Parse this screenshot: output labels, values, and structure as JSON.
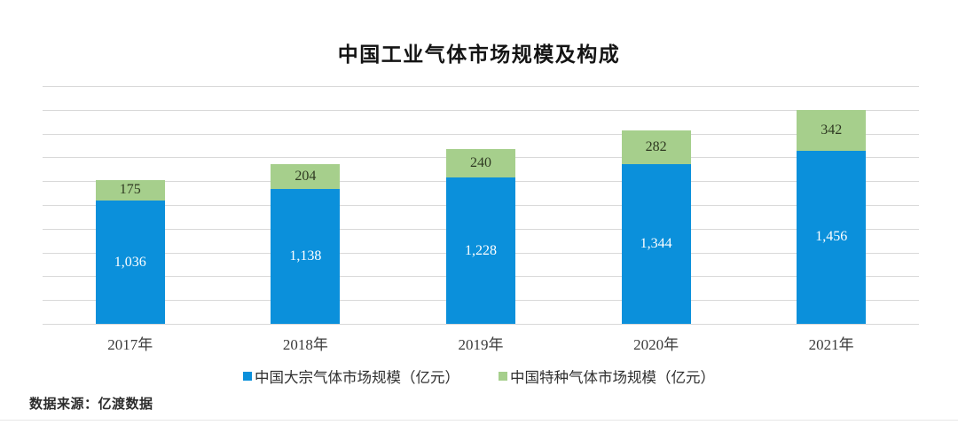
{
  "chart_data": {
    "type": "bar",
    "stacked": true,
    "title": "中国工业气体市场规模及构成",
    "categories": [
      "2017年",
      "2018年",
      "2019年",
      "2020年",
      "2021年"
    ],
    "series": [
      {
        "name": "中国大宗气体市场规模（亿元）",
        "color": "#0b90db",
        "label_color": "#ffffff",
        "values": [
          1036,
          1138,
          1228,
          1344,
          1456
        ],
        "labels": [
          "1,036",
          "1,138",
          "1,228",
          "1,344",
          "1,456"
        ]
      },
      {
        "name": "中国特种气体市场规模（亿元）",
        "color": "#a6cf8c",
        "label_color": "#2f3a22",
        "values": [
          175,
          204,
          240,
          282,
          342
        ],
        "labels": [
          "175",
          "204",
          "240",
          "282",
          "342"
        ]
      }
    ],
    "xlabel": "",
    "ylabel": "",
    "ylim": [
      0,
      2000
    ],
    "grid_step": 200,
    "grid": true,
    "yticks_visible": false,
    "legend_position": "bottom",
    "gridline_color": "#d9d9d9"
  },
  "footer": {
    "source_note": "数据来源：亿渡数据"
  }
}
